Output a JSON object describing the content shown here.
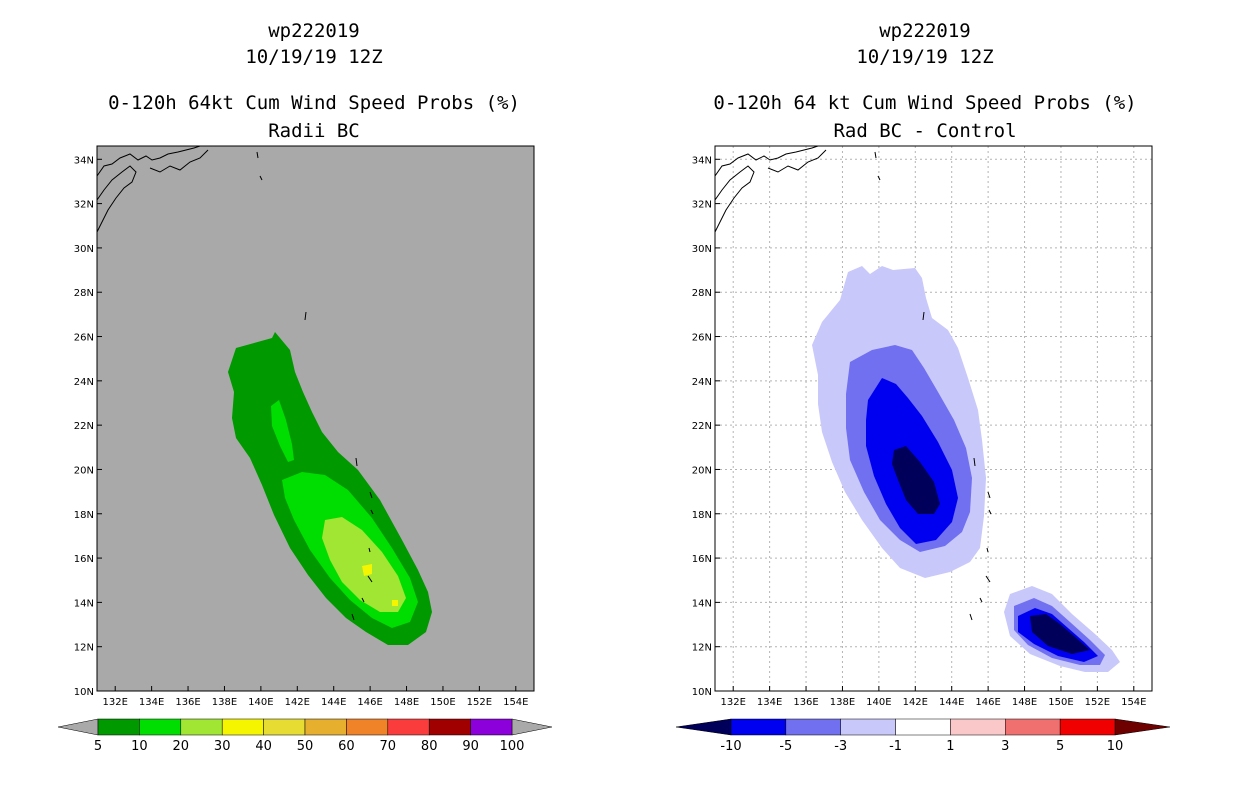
{
  "panels": [
    {
      "id": "left",
      "title_line1": "wp222019",
      "title_line2": "10/19/19 12Z",
      "title_line3": "0-120h 64kt Cum Wind Speed Probs (%)",
      "title_line4": "Radii BC",
      "background": "#a9a9a9",
      "lon_labels": [
        "132E",
        "134E",
        "136E",
        "138E",
        "140E",
        "142E",
        "144E",
        "146E",
        "148E",
        "150E",
        "152E",
        "154E"
      ],
      "lat_labels": [
        "10N",
        "12N",
        "14N",
        "16N",
        "18N",
        "20N",
        "22N",
        "24N",
        "26N",
        "28N",
        "30N",
        "32N",
        "34N"
      ],
      "colorbar": {
        "labels": [
          "5",
          "10",
          "20",
          "30",
          "40",
          "50",
          "60",
          "70",
          "80",
          "90",
          "100"
        ],
        "colors": [
          "#009900",
          "#00dd00",
          "#a0e632",
          "#f5f500",
          "#e6dc32",
          "#e6af2d",
          "#f08228",
          "#fa3c3c",
          "#a00000",
          "#8c00dc"
        ],
        "left_arrow_color": "#a9a9a9",
        "right_arrow_color": "#a9a9a9"
      }
    },
    {
      "id": "right",
      "title_line1": "wp222019",
      "title_line2": "10/19/19 12Z",
      "title_line3": "0-120h 64 kt Cum Wind Speed Probs (%)",
      "title_line4": "Rad BC - Control",
      "background": "#ffffff",
      "lon_labels": [
        "132E",
        "134E",
        "136E",
        "138E",
        "140E",
        "142E",
        "144E",
        "146E",
        "148E",
        "150E",
        "152E",
        "154E"
      ],
      "lat_labels": [
        "10N",
        "12N",
        "14N",
        "16N",
        "18N",
        "20N",
        "22N",
        "24N",
        "26N",
        "28N",
        "30N",
        "32N",
        "34N"
      ],
      "colorbar": {
        "labels": [
          "-10",
          "-5",
          "-3",
          "-1",
          "1",
          "3",
          "5",
          "10"
        ],
        "colors": [
          "#0000f0",
          "#7070f0",
          "#c8c8fa",
          "#ffffff",
          "#fac8c8",
          "#f07070",
          "#f00000"
        ],
        "left_arrow_color": "#00005a",
        "right_arrow_color": "#6e0000"
      }
    }
  ]
}
